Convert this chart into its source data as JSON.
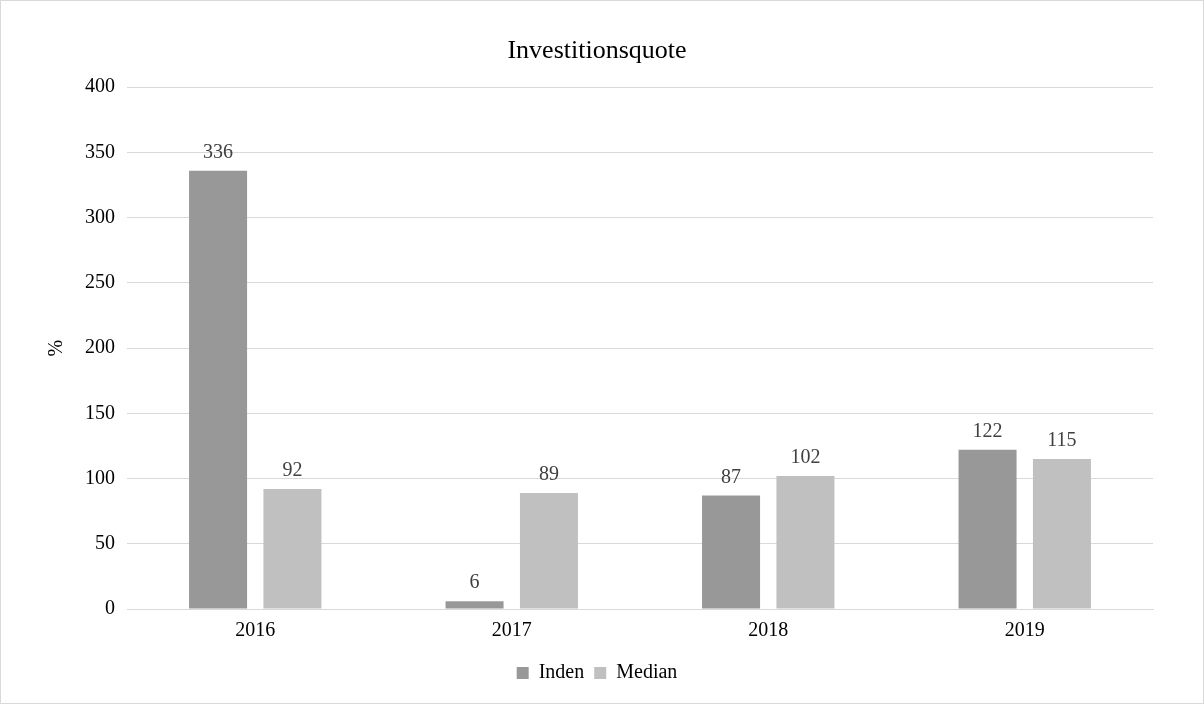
{
  "chart_data": {
    "type": "bar",
    "title": "Investitionsquote",
    "ylabel": "%",
    "categories": [
      "2016",
      "2017",
      "2018",
      "2019"
    ],
    "series": [
      {
        "name": "Inden",
        "color": "#989898",
        "values": [
          336,
          6,
          87,
          122
        ]
      },
      {
        "name": "Median",
        "color": "#c0c0c0",
        "values": [
          92,
          89,
          102,
          115
        ]
      }
    ],
    "ylim": [
      0,
      400
    ],
    "yticks": [
      0,
      50,
      100,
      150,
      200,
      250,
      300,
      350,
      400
    ],
    "grid": "y",
    "legend": "bottom",
    "data_labels": true
  }
}
